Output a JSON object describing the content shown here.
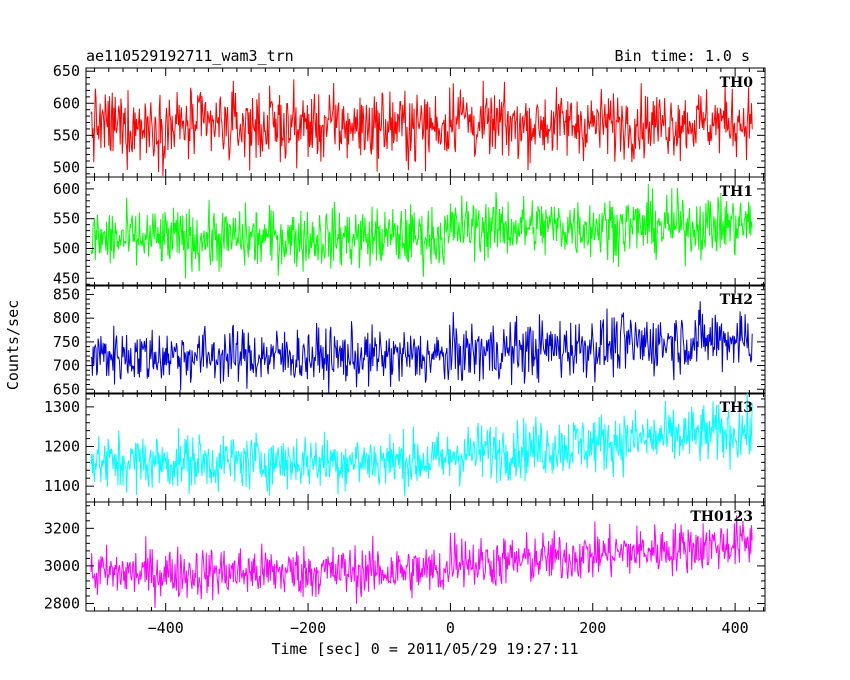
{
  "chart_data": {
    "type": "line",
    "title": "ae110529192711_wam3_trn",
    "subtitle": "Bin time: 1.0 s",
    "xlabel": "Time [sec] 0 = 2011/05/29 19:27:11",
    "ylabel": "Counts/sec",
    "xlim": [
      -512,
      442
    ],
    "data_x_range": [
      -505,
      424
    ],
    "bin_time": 1.0,
    "x_ticks": [
      -400,
      -200,
      0,
      200,
      400
    ],
    "x_tick_labels": [
      "−400",
      "−200",
      "0",
      "200",
      "400"
    ],
    "grid": false,
    "legend": "none",
    "panels": [
      {
        "name": "TH0",
        "color": "#ff0000",
        "ylim": [
          485,
          655
        ],
        "yticks": [
          500,
          550,
          600,
          650
        ],
        "segments": [
          {
            "x_start": -505,
            "x_end": 0,
            "mean_start": 565,
            "mean_end": 565,
            "amplitude": 28
          },
          {
            "x_start": 0,
            "x_end": 30,
            "mean_start": 588,
            "mean_end": 575,
            "amplitude": 30
          },
          {
            "x_start": 30,
            "x_end": 424,
            "mean_start": 565,
            "mean_end": 572,
            "amplitude": 26
          }
        ]
      },
      {
        "name": "TH1",
        "color": "#00ff00",
        "ylim": [
          437,
          620
        ],
        "yticks": [
          450,
          500,
          550,
          600
        ],
        "segments": [
          {
            "x_start": -505,
            "x_end": 0,
            "mean_start": 515,
            "mean_end": 520,
            "amplitude": 26
          },
          {
            "x_start": 0,
            "x_end": 424,
            "mean_start": 535,
            "mean_end": 540,
            "amplitude": 26
          }
        ]
      },
      {
        "name": "TH2",
        "color": "#0000dd",
        "ylim": [
          640,
          870
        ],
        "yticks": [
          650,
          700,
          750,
          800,
          850
        ],
        "segments": [
          {
            "x_start": -505,
            "x_end": 0,
            "mean_start": 722,
            "mean_end": 718,
            "amplitude": 30
          },
          {
            "x_start": 0,
            "x_end": 424,
            "mean_start": 725,
            "mean_end": 760,
            "amplitude": 33
          }
        ]
      },
      {
        "name": "TH3",
        "color": "#00ffff",
        "ylim": [
          1060,
          1335
        ],
        "yticks": [
          1100,
          1200,
          1300
        ],
        "segments": [
          {
            "x_start": -505,
            "x_end": 0,
            "mean_start": 1160,
            "mean_end": 1165,
            "amplitude": 36
          },
          {
            "x_start": 0,
            "x_end": 424,
            "mean_start": 1180,
            "mean_end": 1240,
            "amplitude": 38
          }
        ]
      },
      {
        "name": "TH0123",
        "color": "#ff00ff",
        "ylim": [
          2760,
          3340
        ],
        "yticks": [
          2800,
          3000,
          3200
        ],
        "segments": [
          {
            "x_start": -505,
            "x_end": 0,
            "mean_start": 2960,
            "mean_end": 2975,
            "amplitude": 70
          },
          {
            "x_start": 0,
            "x_end": 30,
            "mean_start": 3060,
            "mean_end": 3030,
            "amplitude": 72
          },
          {
            "x_start": 30,
            "x_end": 424,
            "mean_start": 3010,
            "mean_end": 3125,
            "amplitude": 68
          }
        ]
      }
    ]
  }
}
